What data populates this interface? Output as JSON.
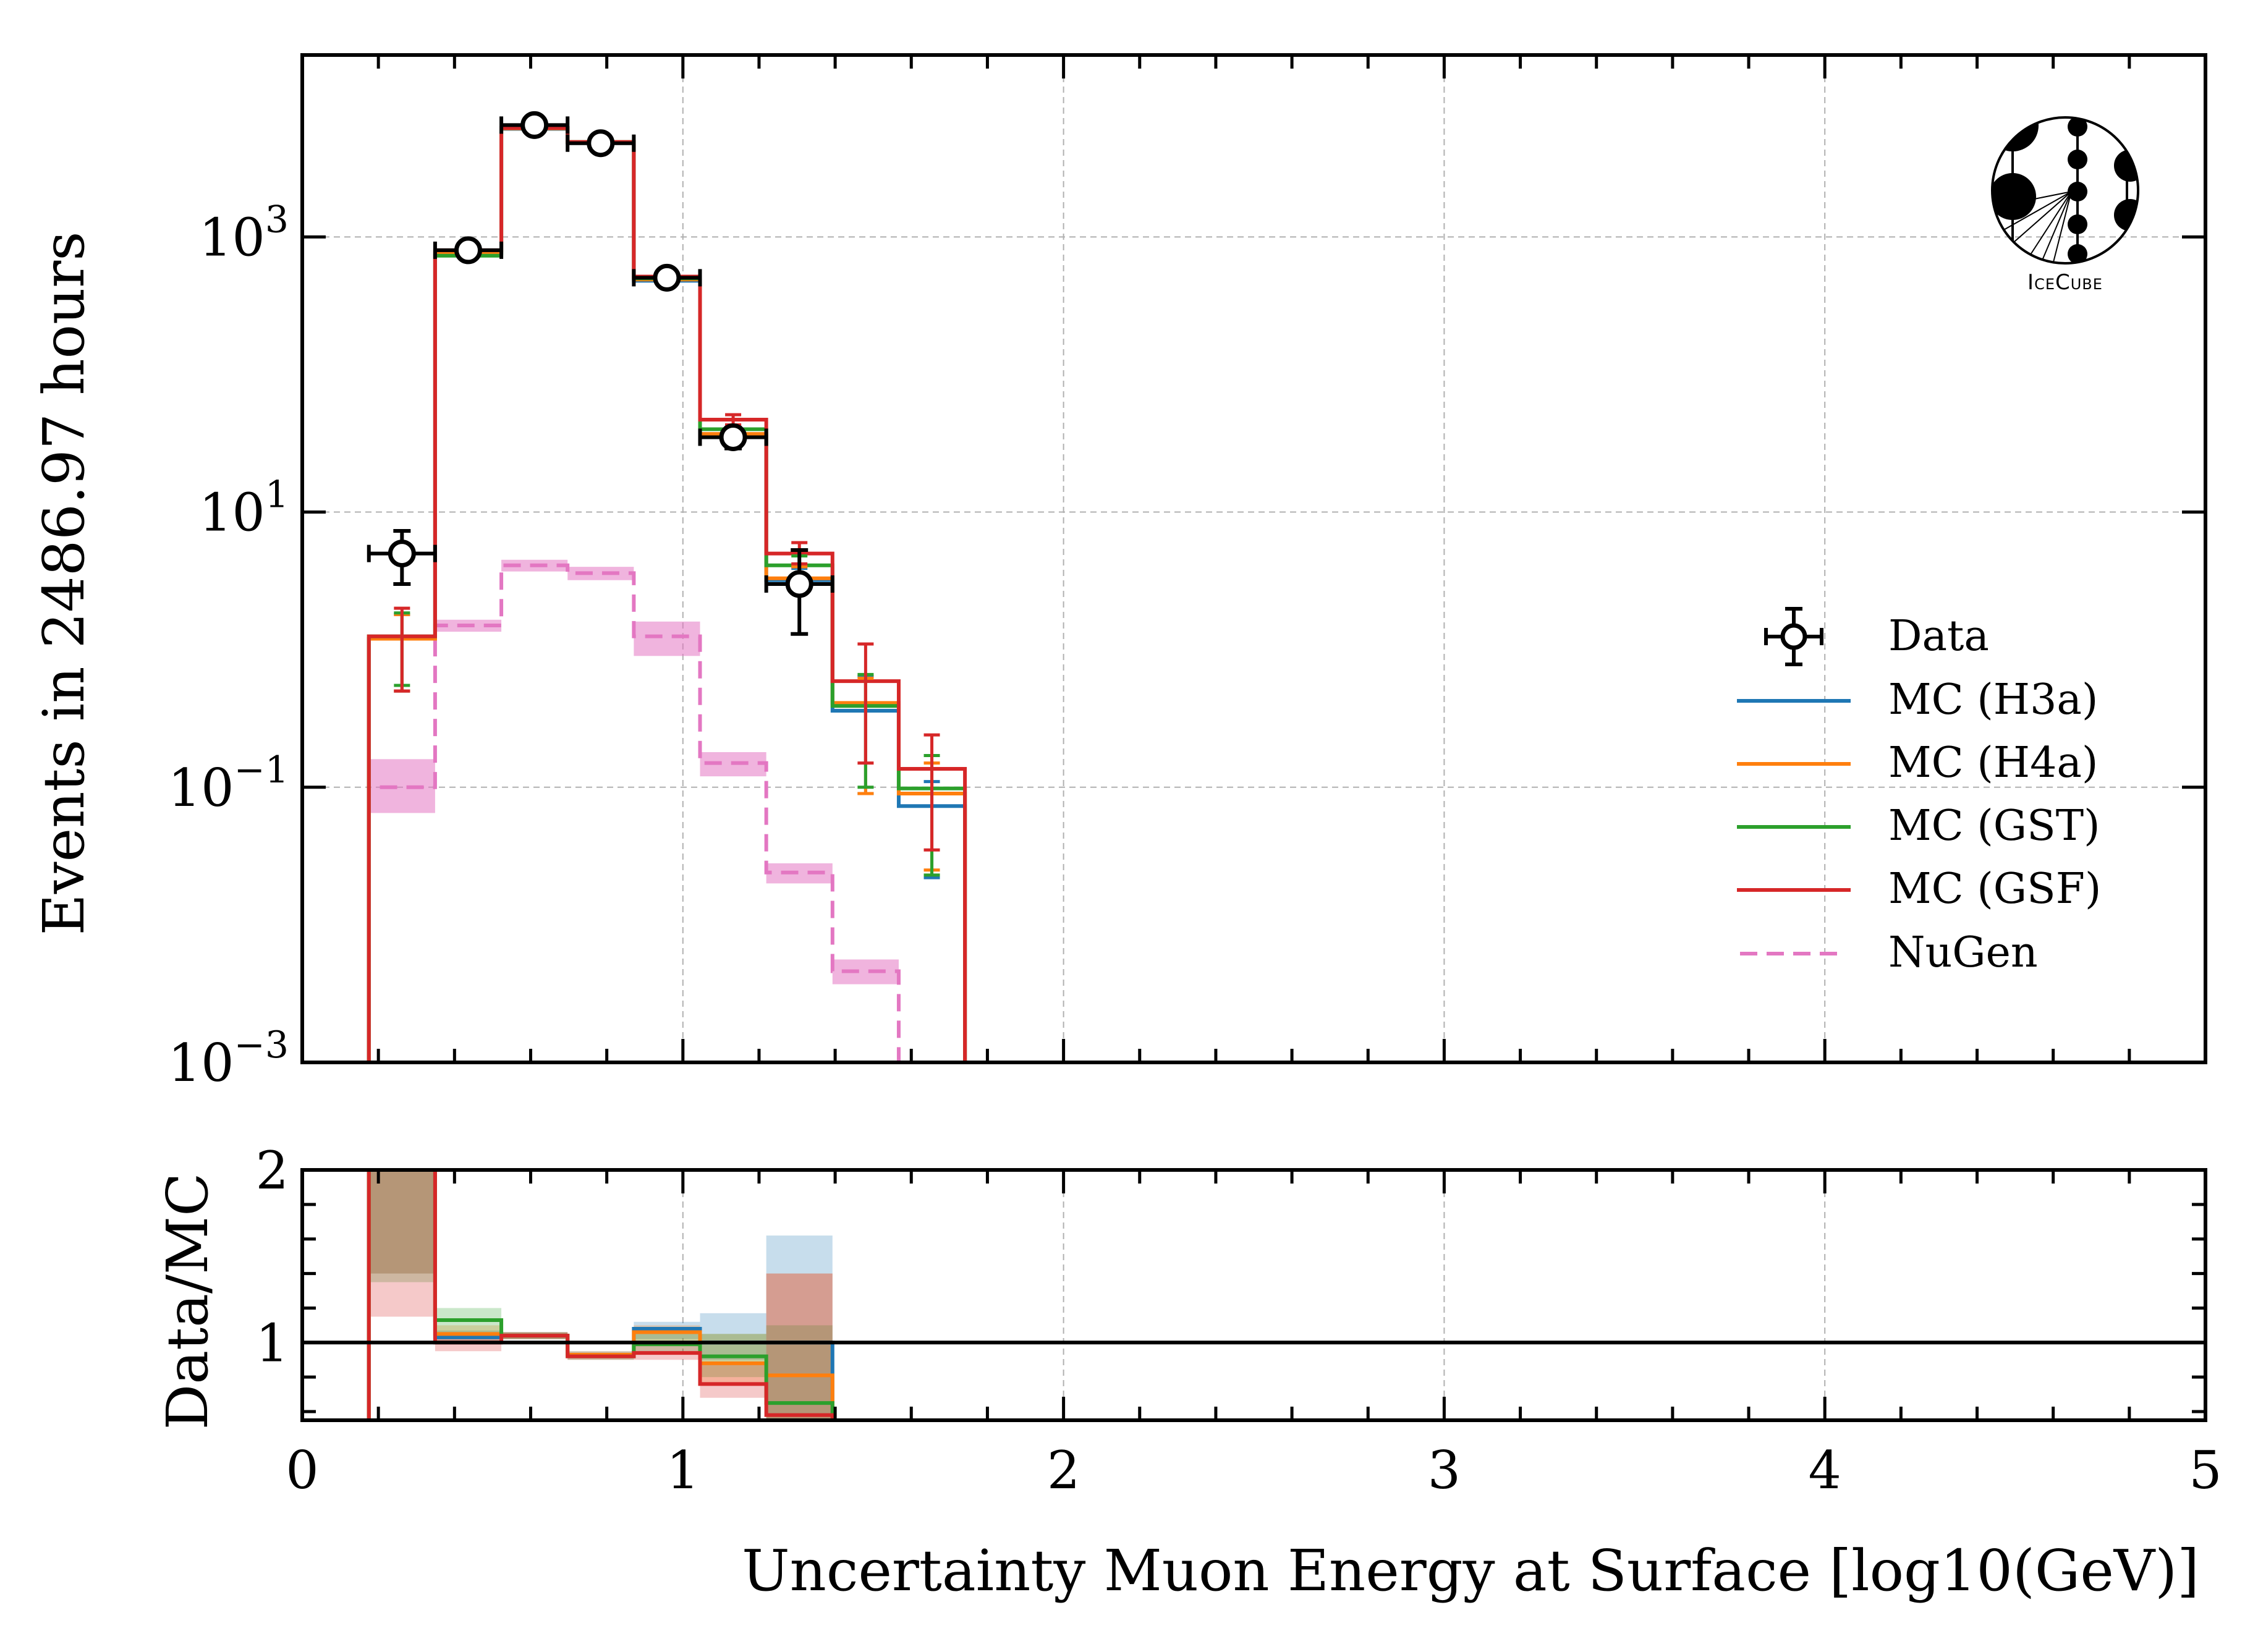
{
  "chart_data": [
    {
      "panel": "main",
      "type": "step-histogram",
      "yscale": "log",
      "ylabel": "Events in 2486.97 hours",
      "xlabel": "",
      "xlim": [
        0,
        5
      ],
      "ylim": [
        0.001,
        21000
      ],
      "grid": true,
      "x_ticks": [
        "0",
        "1",
        "2",
        "3",
        "4",
        "5"
      ],
      "y_ticks": [
        {
          "value": 1000,
          "base": "10",
          "exp": "3"
        },
        {
          "value": 10,
          "base": "10",
          "exp": "1"
        },
        {
          "value": 0.1,
          "base": "10",
          "exp": "−1"
        },
        {
          "value": 0.001,
          "base": "10",
          "exp": "−3"
        }
      ],
      "bin_edges": [
        0.175,
        0.349,
        0.523,
        0.697,
        0.871,
        1.045,
        1.219,
        1.393,
        1.567,
        1.741
      ],
      "series": [
        {
          "name": "MC (H3a)",
          "color": "#1f77b4",
          "style": "solid",
          "values": [
            1.2,
            760,
            6100,
            4850,
            480,
            36,
            3.2,
            0.36,
            0.073
          ],
          "err_low": [
            0.5,
            700,
            5900,
            4700,
            460,
            33,
            2.6,
            0.09,
            0.022
          ],
          "err_high": [
            1.8,
            820,
            6300,
            5000,
            500,
            39,
            3.9,
            0.64,
            0.11
          ]
        },
        {
          "name": "MC (H4a)",
          "color": "#ff7f0e",
          "style": "solid",
          "values": [
            1.2,
            770,
            6150,
            4870,
            490,
            37,
            3.3,
            0.41,
            0.09
          ],
          "err_low": [
            0.5,
            710,
            5950,
            4720,
            470,
            34,
            2.7,
            0.09,
            0.025
          ],
          "err_high": [
            1.8,
            830,
            6350,
            5020,
            510,
            40,
            4.0,
            0.62,
            0.15
          ]
        },
        {
          "name": "MC (GST)",
          "color": "#2ca02c",
          "style": "solid",
          "values": [
            1.25,
            730,
            6200,
            4900,
            500,
            40,
            4.1,
            0.39,
            0.098
          ],
          "err_low": [
            0.55,
            680,
            6000,
            4750,
            480,
            37,
            3.4,
            0.1,
            0.023
          ],
          "err_high": [
            1.85,
            790,
            6400,
            5050,
            520,
            43,
            4.8,
            0.66,
            0.17
          ]
        },
        {
          "name": "MC (GSF)",
          "color": "#d62728",
          "style": "solid",
          "values": [
            1.25,
            800,
            6200,
            4900,
            515,
            47,
            5.0,
            0.59,
            0.136
          ],
          "err_low": [
            0.5,
            740,
            6000,
            4750,
            495,
            43,
            4.2,
            0.15,
            0.035
          ],
          "err_high": [
            2.0,
            860,
            6400,
            5050,
            535,
            51,
            6.0,
            1.1,
            0.24
          ]
        },
        {
          "name": "NuGen",
          "color": "#e377c2",
          "style": "dashed",
          "values": [
            0.1,
            1.5,
            4.1,
            3.6,
            1.25,
            0.15,
            0.024,
            0.0046,
            0.0
          ],
          "band_low": [
            0.065,
            1.35,
            3.7,
            3.2,
            0.9,
            0.12,
            0.02,
            0.0037,
            0.0
          ],
          "band_high": [
            0.16,
            1.65,
            4.5,
            4.0,
            1.6,
            0.18,
            0.028,
            0.0056,
            0.0
          ]
        }
      ],
      "data_points": {
        "name": "Data",
        "x": [
          0.262,
          0.436,
          0.61,
          0.784,
          0.958,
          1.132,
          1.306
        ],
        "y": [
          5.0,
          800,
          6500,
          4800,
          505,
          35,
          3.0
        ],
        "y_low": [
          3.0,
          760,
          6300,
          4650,
          480,
          29,
          1.3
        ],
        "y_high": [
          7.3,
          840,
          6700,
          4950,
          530,
          41,
          5.3
        ],
        "xerr": 0.087
      },
      "legend": {
        "placement": "center-right",
        "entries": [
          {
            "label": "Data",
            "kind": "errorbar-marker",
            "color": "#000000"
          },
          {
            "label": "MC (H3a)",
            "kind": "line",
            "color": "#1f77b4"
          },
          {
            "label": "MC (H4a)",
            "kind": "line",
            "color": "#ff7f0e"
          },
          {
            "label": "MC (GST)",
            "kind": "line",
            "color": "#2ca02c"
          },
          {
            "label": "MC (GSF)",
            "kind": "line",
            "color": "#d62728"
          },
          {
            "label": "NuGen",
            "kind": "dashed",
            "color": "#e377c2"
          }
        ]
      },
      "logo": {
        "text": "IceCube",
        "placement": "top-right"
      }
    },
    {
      "panel": "ratio",
      "type": "step-histogram",
      "yscale": "linear",
      "ylabel": "Data/MC",
      "xlabel": "Uncertainty Muon Energy at Surface [log10(GeV)]",
      "xlim": [
        0,
        5
      ],
      "ylim": [
        0.55,
        2
      ],
      "grid": true,
      "reference_line": 1,
      "x_ticks": [
        "0",
        "1",
        "2",
        "3",
        "4",
        "5"
      ],
      "y_ticks": [
        "1",
        "2"
      ],
      "bin_edges": [
        0.175,
        0.349,
        0.523,
        0.697,
        0.871,
        1.045,
        1.219,
        1.393
      ],
      "series": [
        {
          "name": "MC (H3a)",
          "color": "#1f77b4",
          "values": [
            4.2,
            1.03,
            1.04,
            0.93,
            1.08,
            1.0,
            1.0
          ],
          "band_low": [
            1.4,
            0.99,
            1.02,
            0.91,
            1.02,
            0.9,
            0.55
          ],
          "band_high": [
            6.0,
            1.07,
            1.06,
            0.95,
            1.12,
            1.17,
            1.62
          ]
        },
        {
          "name": "MC (H4a)",
          "color": "#ff7f0e",
          "values": [
            4.1,
            1.05,
            1.04,
            0.93,
            1.06,
            0.88,
            0.81
          ],
          "band_low": [
            1.4,
            1.0,
            1.02,
            0.91,
            1.0,
            0.75,
            0.55
          ],
          "band_high": [
            6.0,
            1.1,
            1.06,
            0.95,
            1.1,
            1.05,
            1.4
          ]
        },
        {
          "name": "MC (GST)",
          "color": "#2ca02c",
          "values": [
            4.0,
            1.13,
            1.04,
            0.92,
            0.99,
            0.92,
            0.65
          ],
          "band_low": [
            1.35,
            1.05,
            1.02,
            0.9,
            0.95,
            0.8,
            0.55
          ],
          "band_high": [
            6.0,
            1.2,
            1.06,
            0.94,
            1.05,
            1.05,
            1.1
          ]
        },
        {
          "name": "MC (GSF)",
          "color": "#d62728",
          "values": [
            4.0,
            1.0,
            1.04,
            0.92,
            0.94,
            0.76,
            0.58
          ],
          "band_low": [
            1.15,
            0.95,
            1.02,
            0.9,
            0.9,
            0.68,
            0.55
          ],
          "band_high": [
            6.0,
            1.05,
            1.06,
            0.94,
            0.98,
            0.88,
            1.4
          ]
        }
      ]
    }
  ]
}
